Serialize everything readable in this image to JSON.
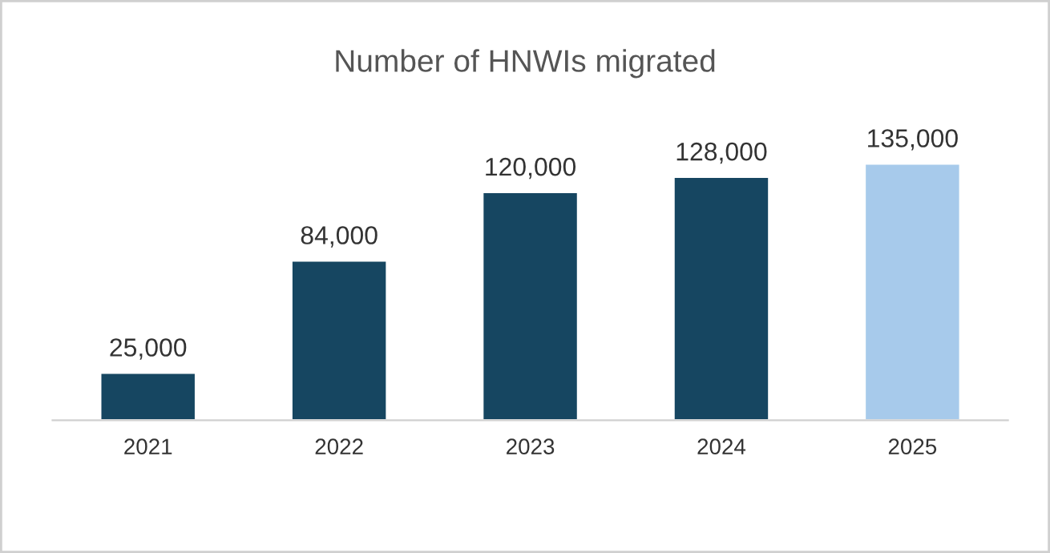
{
  "chart_data": {
    "type": "bar",
    "title": "Number of HNWIs migrated",
    "categories": [
      "2021",
      "2022",
      "2023",
      "2024",
      "2025"
    ],
    "values": [
      25000,
      84000,
      120000,
      128000,
      135000
    ],
    "colors": [
      "#164661",
      "#164661",
      "#164661",
      "#164661",
      "#a7caeb"
    ],
    "value_labels": [
      "25,000",
      "84,000",
      "120,000",
      "128,000",
      "135,000"
    ],
    "legend": false
  }
}
